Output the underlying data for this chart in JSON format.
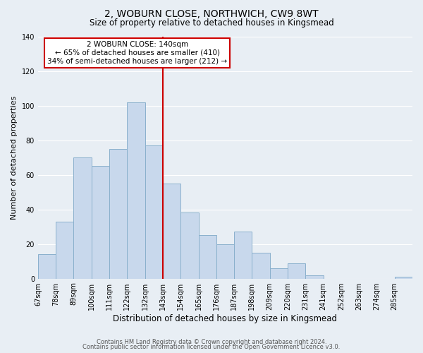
{
  "title": "2, WOBURN CLOSE, NORTHWICH, CW9 8WT",
  "subtitle": "Size of property relative to detached houses in Kingsmead",
  "xlabel": "Distribution of detached houses by size in Kingsmead",
  "ylabel": "Number of detached properties",
  "bar_labels": [
    "67sqm",
    "78sqm",
    "89sqm",
    "100sqm",
    "111sqm",
    "122sqm",
    "132sqm",
    "143sqm",
    "154sqm",
    "165sqm",
    "176sqm",
    "187sqm",
    "198sqm",
    "209sqm",
    "220sqm",
    "231sqm",
    "241sqm",
    "252sqm",
    "263sqm",
    "274sqm",
    "285sqm"
  ],
  "bar_values": [
    14,
    33,
    70,
    65,
    75,
    102,
    77,
    55,
    38,
    25,
    20,
    27,
    15,
    6,
    9,
    2,
    0,
    0,
    0,
    0,
    1
  ],
  "bar_color": "#c8d8ec",
  "bar_edge_color": "#8ab0cc",
  "vline_x": 7,
  "vline_color": "#cc0000",
  "annotation_title": "2 WOBURN CLOSE: 140sqm",
  "annotation_line1": "← 65% of detached houses are smaller (410)",
  "annotation_line2": "34% of semi-detached houses are larger (212) →",
  "annotation_box_color": "#ffffff",
  "annotation_box_edge": "#cc0000",
  "ylim": [
    0,
    140
  ],
  "yticks": [
    0,
    20,
    40,
    60,
    80,
    100,
    120,
    140
  ],
  "footnote1": "Contains HM Land Registry data © Crown copyright and database right 2024.",
  "footnote2": "Contains public sector information licensed under the Open Government Licence v3.0.",
  "bg_color": "#e8eef4",
  "grid_color": "#ffffff",
  "title_fontsize": 10,
  "subtitle_fontsize": 8.5,
  "xlabel_fontsize": 8.5,
  "ylabel_fontsize": 8,
  "tick_fontsize": 7,
  "footnote_fontsize": 6
}
